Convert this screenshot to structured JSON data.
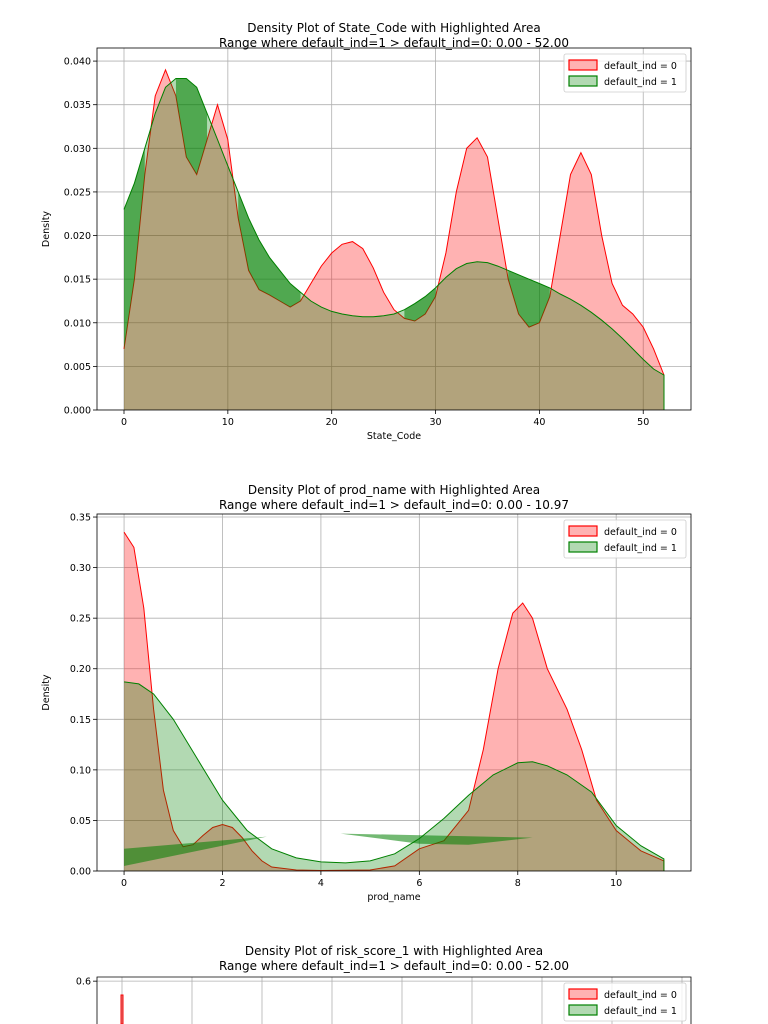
{
  "colors": {
    "red_line": "#ff0000",
    "red_fill": "rgba(255,0,0,0.3)",
    "green_line": "#008000",
    "green_fill": "rgba(0,128,0,0.3)",
    "highlight_fill": "rgba(0,128,0,0.55)",
    "grid": "#b0b0b0"
  },
  "chart_data": [
    {
      "type": "area",
      "title": "Density Plot of State_Code with Highlighted Area",
      "subtitle": "Range where default_ind=1 > default_ind=0: 0.00 - 52.00",
      "xlabel": "State_Code",
      "ylabel": "Density",
      "xlim": [
        -2.6,
        54.6
      ],
      "ylim": [
        0,
        0.0415
      ],
      "xticks": [
        0,
        10,
        20,
        30,
        40,
        50
      ],
      "xtick_labels": [
        "0",
        "10",
        "20",
        "30",
        "40",
        "50"
      ],
      "yticks": [
        0,
        0.005,
        0.01,
        0.015,
        0.02,
        0.025,
        0.03,
        0.035,
        0.04
      ],
      "ytick_labels": [
        "0.000",
        "0.005",
        "0.010",
        "0.015",
        "0.020",
        "0.025",
        "0.030",
        "0.035",
        "0.040"
      ],
      "grid": true,
      "legend": "top-right",
      "highlight_between": true,
      "series": [
        {
          "name": "default_ind = 0",
          "color": "red",
          "x": [
            0,
            1,
            2,
            3,
            4,
            5,
            6,
            7,
            8,
            9,
            10,
            11,
            12,
            13,
            14,
            15,
            16,
            17,
            18,
            19,
            20,
            21,
            22,
            23,
            24,
            25,
            26,
            27,
            28,
            29,
            30,
            31,
            32,
            33,
            34,
            35,
            36,
            37,
            38,
            39,
            40,
            41,
            42,
            43,
            44,
            45,
            46,
            47,
            48,
            49,
            50,
            51,
            52
          ],
          "y": [
            0.007,
            0.015,
            0.027,
            0.036,
            0.039,
            0.036,
            0.029,
            0.027,
            0.031,
            0.035,
            0.031,
            0.022,
            0.016,
            0.0138,
            0.0132,
            0.0125,
            0.0118,
            0.0125,
            0.0145,
            0.0165,
            0.018,
            0.019,
            0.0193,
            0.0185,
            0.0163,
            0.0135,
            0.0115,
            0.0105,
            0.0102,
            0.011,
            0.013,
            0.018,
            0.025,
            0.03,
            0.0312,
            0.029,
            0.022,
            0.015,
            0.011,
            0.0095,
            0.01,
            0.013,
            0.02,
            0.027,
            0.0295,
            0.027,
            0.02,
            0.0145,
            0.012,
            0.011,
            0.0095,
            0.007,
            0.004
          ]
        },
        {
          "name": "default_ind = 1",
          "color": "green",
          "x": [
            0,
            1,
            2,
            3,
            4,
            5,
            6,
            7,
            8,
            9,
            10,
            11,
            12,
            13,
            14,
            15,
            16,
            17,
            18,
            19,
            20,
            21,
            22,
            23,
            24,
            25,
            26,
            27,
            28,
            29,
            30,
            31,
            32,
            33,
            34,
            35,
            36,
            37,
            38,
            39,
            40,
            41,
            42,
            43,
            44,
            45,
            46,
            47,
            48,
            49,
            50,
            51,
            52
          ],
          "y": [
            0.023,
            0.026,
            0.03,
            0.034,
            0.037,
            0.038,
            0.038,
            0.037,
            0.034,
            0.031,
            0.028,
            0.025,
            0.022,
            0.0195,
            0.0175,
            0.016,
            0.0145,
            0.0135,
            0.0125,
            0.0118,
            0.0113,
            0.011,
            0.0108,
            0.0107,
            0.0107,
            0.0108,
            0.011,
            0.0115,
            0.0122,
            0.013,
            0.014,
            0.0152,
            0.0162,
            0.0168,
            0.017,
            0.0169,
            0.0165,
            0.016,
            0.0155,
            0.015,
            0.0145,
            0.014,
            0.0133,
            0.0127,
            0.012,
            0.0112,
            0.0103,
            0.0093,
            0.0082,
            0.007,
            0.0058,
            0.0047,
            0.004
          ]
        }
      ]
    },
    {
      "type": "area",
      "title": "Density Plot of prod_name with Highlighted Area",
      "subtitle": "Range where default_ind=1 > default_ind=0: 0.00 - 10.97",
      "xlabel": "prod_name",
      "ylabel": "Density",
      "xlim": [
        -0.55,
        11.52
      ],
      "ylim": [
        0,
        0.353
      ],
      "xticks": [
        0,
        2,
        4,
        6,
        8,
        10
      ],
      "xtick_labels": [
        "0",
        "2",
        "4",
        "6",
        "8",
        "10"
      ],
      "yticks": [
        0,
        0.05,
        0.1,
        0.15,
        0.2,
        0.25,
        0.3,
        0.35
      ],
      "ytick_labels": [
        "0.00",
        "0.05",
        "0.10",
        "0.15",
        "0.20",
        "0.25",
        "0.30",
        "0.35"
      ],
      "grid": true,
      "legend": "top-right",
      "highlight_between": false,
      "highlight_polygons": [
        [
          [
            0,
            0.022
          ],
          [
            2.9,
            0.034
          ],
          [
            0,
            0.005
          ]
        ],
        [
          [
            4.4,
            0.037
          ],
          [
            8.3,
            0.033
          ],
          [
            7,
            0.026
          ],
          [
            6,
            0.027
          ],
          [
            4.4,
            0.037
          ]
        ]
      ],
      "series": [
        {
          "name": "default_ind = 0",
          "color": "red",
          "x": [
            0,
            0.2,
            0.4,
            0.6,
            0.8,
            1.0,
            1.2,
            1.4,
            1.6,
            1.8,
            2.0,
            2.2,
            2.4,
            2.6,
            2.8,
            3.0,
            3.5,
            4.0,
            5.0,
            5.5,
            6.0,
            6.5,
            7.0,
            7.3,
            7.6,
            7.9,
            8.1,
            8.3,
            8.6,
            9.0,
            9.3,
            9.6,
            10.0,
            10.5,
            10.97
          ],
          "y": [
            0.335,
            0.32,
            0.26,
            0.16,
            0.08,
            0.04,
            0.024,
            0.026,
            0.035,
            0.043,
            0.046,
            0.043,
            0.033,
            0.02,
            0.01,
            0.004,
            0.001,
            0.0005,
            0.001,
            0.005,
            0.022,
            0.03,
            0.06,
            0.12,
            0.2,
            0.255,
            0.265,
            0.25,
            0.2,
            0.16,
            0.12,
            0.07,
            0.04,
            0.02,
            0.01
          ]
        },
        {
          "name": "default_ind = 1",
          "color": "green",
          "x": [
            0,
            0.3,
            0.6,
            1.0,
            1.5,
            2.0,
            2.5,
            3.0,
            3.5,
            4.0,
            4.5,
            5.0,
            5.5,
            6.0,
            6.5,
            7.0,
            7.5,
            8.0,
            8.3,
            8.6,
            9.0,
            9.5,
            10.0,
            10.5,
            10.97
          ],
          "y": [
            0.187,
            0.185,
            0.175,
            0.15,
            0.11,
            0.07,
            0.04,
            0.022,
            0.013,
            0.009,
            0.008,
            0.01,
            0.017,
            0.032,
            0.052,
            0.075,
            0.095,
            0.107,
            0.108,
            0.104,
            0.095,
            0.078,
            0.045,
            0.025,
            0.012
          ]
        }
      ]
    },
    {
      "type": "area",
      "title": "Density Plot of risk_score_1 with Highlighted Area",
      "subtitle": "Range where default_ind=1 > default_ind=0: 0.00 - 52.00",
      "ylim": [
        0,
        0.607
      ],
      "yticks": [
        0.6
      ],
      "ytick_labels": [
        "0.6"
      ],
      "grid": true,
      "legend": "top-right",
      "series": [
        {
          "name": "default_ind = 0",
          "color": "red"
        },
        {
          "name": "default_ind = 1",
          "color": "green"
        }
      ]
    }
  ]
}
